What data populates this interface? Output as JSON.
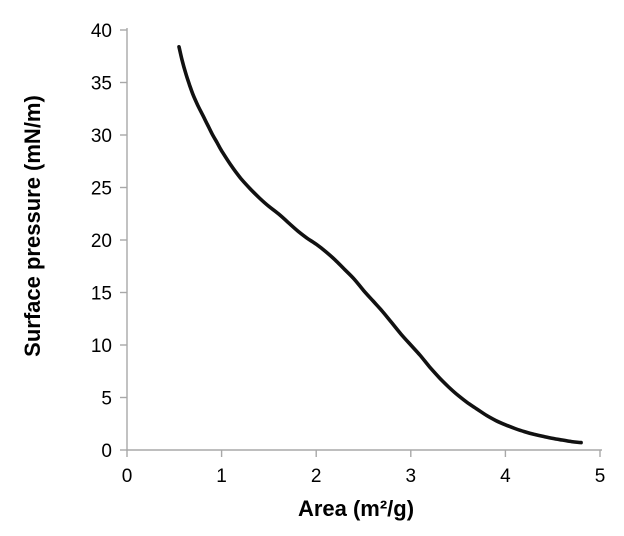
{
  "chart_data": {
    "type": "line",
    "title": "",
    "xlabel": "Area (m²/g)",
    "ylabel": "Surface pressure (mN/m)",
    "xlim": [
      0,
      5
    ],
    "ylim": [
      0,
      40
    ],
    "x_ticks": [
      0,
      1,
      2,
      3,
      4,
      5
    ],
    "y_ticks": [
      0,
      5,
      10,
      15,
      20,
      25,
      30,
      35,
      40
    ],
    "grid": false,
    "legend": "none",
    "style": {
      "axis_color": "#a8a8a8",
      "text_color": "#000000",
      "background": "#ffffff"
    },
    "series": [
      {
        "name": "surface-pressure-isotherm",
        "color": "#111111",
        "stroke_width": 3.6,
        "marker": "none",
        "points": [
          [
            0.55,
            38.4
          ],
          [
            0.58,
            37.2
          ],
          [
            0.62,
            35.9
          ],
          [
            0.66,
            34.8
          ],
          [
            0.7,
            33.8
          ],
          [
            0.75,
            32.8
          ],
          [
            0.8,
            31.9
          ],
          [
            0.85,
            31.0
          ],
          [
            0.9,
            30.1
          ],
          [
            0.95,
            29.3
          ],
          [
            1.0,
            28.5
          ],
          [
            1.1,
            27.1
          ],
          [
            1.2,
            25.9
          ],
          [
            1.3,
            24.9
          ],
          [
            1.4,
            24.0
          ],
          [
            1.5,
            23.2
          ],
          [
            1.6,
            22.5
          ],
          [
            1.7,
            21.7
          ],
          [
            1.8,
            20.9
          ],
          [
            1.9,
            20.2
          ],
          [
            2.0,
            19.6
          ],
          [
            2.1,
            18.9
          ],
          [
            2.2,
            18.1
          ],
          [
            2.3,
            17.2
          ],
          [
            2.4,
            16.3
          ],
          [
            2.5,
            15.2
          ],
          [
            2.6,
            14.2
          ],
          [
            2.7,
            13.2
          ],
          [
            2.8,
            12.1
          ],
          [
            2.9,
            11.0
          ],
          [
            3.0,
            10.0
          ],
          [
            3.1,
            9.0
          ],
          [
            3.2,
            7.9
          ],
          [
            3.3,
            6.9
          ],
          [
            3.4,
            6.0
          ],
          [
            3.5,
            5.2
          ],
          [
            3.6,
            4.5
          ],
          [
            3.7,
            3.9
          ],
          [
            3.8,
            3.3
          ],
          [
            3.9,
            2.8
          ],
          [
            4.0,
            2.4
          ],
          [
            4.1,
            2.05
          ],
          [
            4.2,
            1.75
          ],
          [
            4.3,
            1.5
          ],
          [
            4.4,
            1.3
          ],
          [
            4.5,
            1.1
          ],
          [
            4.6,
            0.95
          ],
          [
            4.7,
            0.8
          ],
          [
            4.8,
            0.7
          ]
        ]
      }
    ]
  }
}
